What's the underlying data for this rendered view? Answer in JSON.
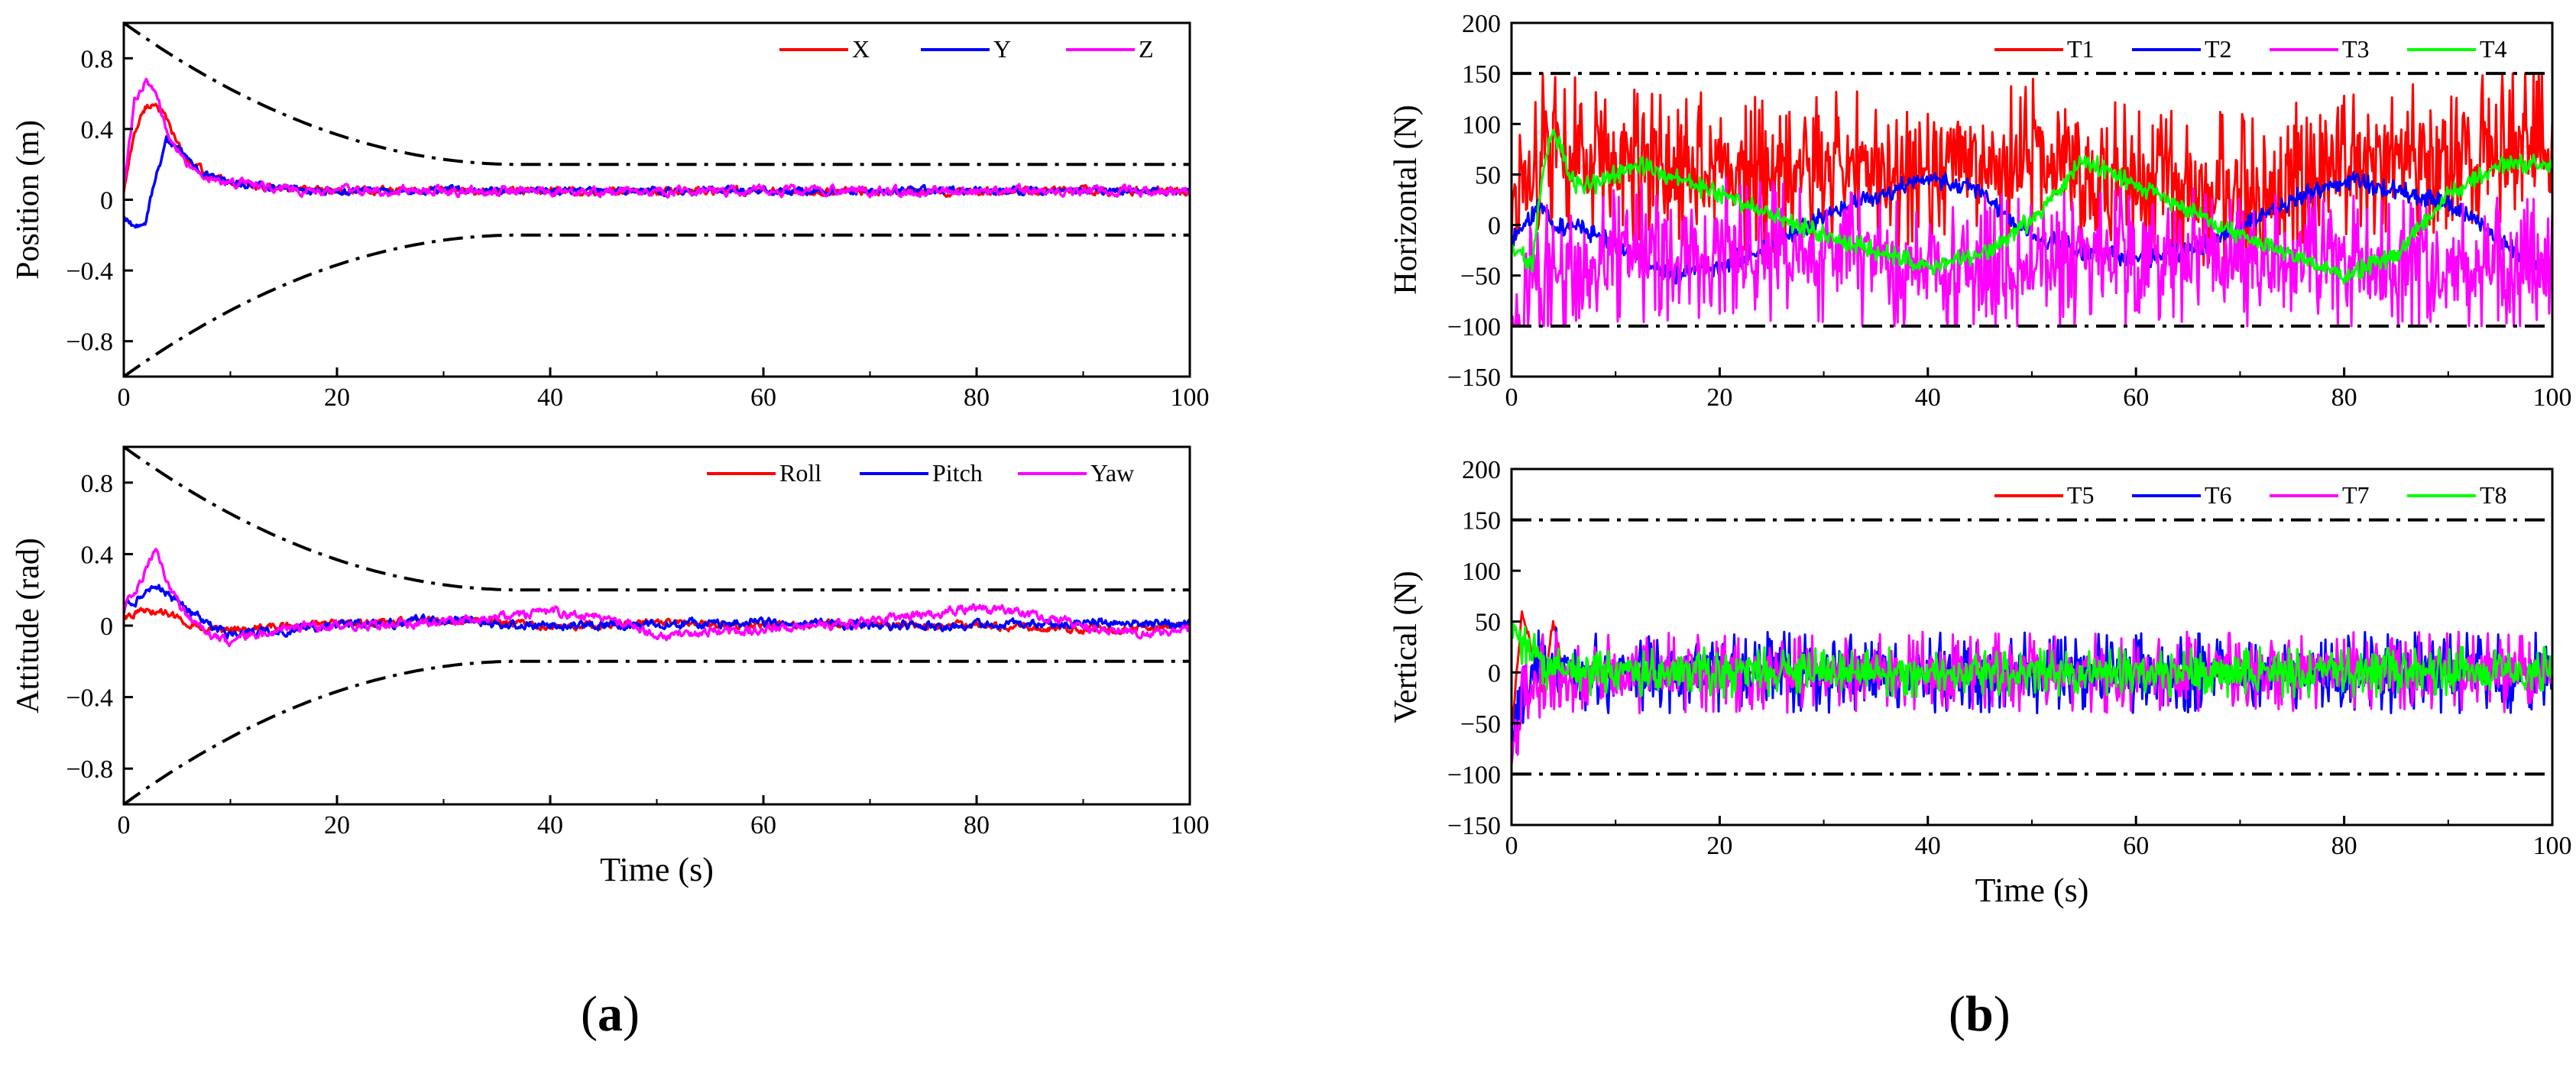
{
  "panels": [
    {
      "id": "a",
      "label": "a"
    },
    {
      "id": "b",
      "label": "b"
    }
  ],
  "chart_data": [
    {
      "id": "position",
      "type": "line",
      "title": "",
      "xlabel": "",
      "ylabel": "Position (m)",
      "xlim": [
        0,
        100
      ],
      "ylim": [
        -1.0,
        1.0
      ],
      "xticks": [
        0,
        20,
        40,
        60,
        80,
        100
      ],
      "xtick_labels": [
        "0",
        "20",
        "40",
        "60",
        "80",
        "100"
      ],
      "yticks": [
        -0.8,
        -0.4,
        0,
        0.4,
        0.8
      ],
      "ytick_labels": [
        "−0.8",
        "−0.4",
        "0",
        "0.4",
        "0.8"
      ],
      "legend_position": "top-right",
      "bounds": {
        "type": "prescribed",
        "upper_start": 1.0,
        "lower_start": -1.0,
        "settle_value": 0.2,
        "settle_time": 37,
        "style": "dash-dot",
        "color": "#000000"
      },
      "series": [
        {
          "name": "X",
          "color": "#ff0000",
          "x": [
            0,
            1,
            2,
            3,
            4,
            5,
            6,
            8,
            10,
            12,
            15,
            20,
            30,
            40,
            50,
            60,
            70,
            80,
            90,
            100
          ],
          "values": [
            0.05,
            0.38,
            0.52,
            0.55,
            0.45,
            0.32,
            0.22,
            0.14,
            0.1,
            0.08,
            0.06,
            0.05,
            0.05,
            0.05,
            0.05,
            0.05,
            0.05,
            0.05,
            0.05,
            0.05
          ],
          "noise": 0.02
        },
        {
          "name": "Y",
          "color": "#0000ff",
          "x": [
            0,
            1,
            2,
            3,
            4,
            5,
            6,
            8,
            10,
            12,
            15,
            20,
            30,
            40,
            50,
            60,
            70,
            80,
            90,
            100
          ],
          "values": [
            -0.1,
            -0.16,
            -0.12,
            0.12,
            0.33,
            0.3,
            0.22,
            0.14,
            0.1,
            0.08,
            0.06,
            0.05,
            0.05,
            0.05,
            0.05,
            0.05,
            0.05,
            0.05,
            0.05,
            0.05
          ],
          "noise": 0.02
        },
        {
          "name": "Z",
          "color": "#ff00ff",
          "x": [
            0,
            1,
            2,
            3,
            4,
            5,
            6,
            8,
            10,
            12,
            15,
            20,
            30,
            40,
            50,
            60,
            70,
            80,
            90,
            100
          ],
          "values": [
            0.1,
            0.55,
            0.68,
            0.6,
            0.4,
            0.28,
            0.2,
            0.13,
            0.1,
            0.08,
            0.06,
            0.05,
            0.05,
            0.05,
            0.05,
            0.05,
            0.05,
            0.05,
            0.05,
            0.05
          ],
          "noise": 0.025
        }
      ]
    },
    {
      "id": "attitude",
      "type": "line",
      "title": "",
      "xlabel": "Time (s)",
      "ylabel": "Attitude (rad)",
      "xlim": [
        0,
        100
      ],
      "ylim": [
        -1.0,
        1.0
      ],
      "xticks": [
        0,
        20,
        40,
        60,
        80,
        100
      ],
      "xtick_labels": [
        "0",
        "20",
        "40",
        "60",
        "80",
        "100"
      ],
      "yticks": [
        -0.8,
        -0.4,
        0,
        0.4,
        0.8
      ],
      "ytick_labels": [
        "−0.8",
        "−0.4",
        "0",
        "0.4",
        "0.8"
      ],
      "legend_position": "top-right",
      "bounds": {
        "type": "prescribed",
        "upper_start": 1.0,
        "lower_start": -1.0,
        "settle_value": 0.2,
        "settle_time": 37,
        "style": "dash-dot",
        "color": "#000000"
      },
      "series": [
        {
          "name": "Roll",
          "color": "#ff0000",
          "x": [
            0,
            2,
            4,
            6,
            8,
            10,
            15,
            20,
            30,
            40,
            50,
            60,
            70,
            80,
            90,
            100
          ],
          "values": [
            0.05,
            0.08,
            0.07,
            0.02,
            -0.02,
            -0.03,
            0.0,
            0.01,
            0.03,
            0.0,
            0.01,
            0.0,
            0.01,
            0.0,
            -0.02,
            0.0
          ],
          "noise": 0.02
        },
        {
          "name": "Pitch",
          "color": "#0000ff",
          "x": [
            0,
            2,
            3,
            4,
            6,
            8,
            10,
            15,
            20,
            30,
            40,
            50,
            60,
            70,
            80,
            90,
            100
          ],
          "values": [
            0.1,
            0.18,
            0.22,
            0.18,
            0.08,
            0.0,
            -0.05,
            -0.02,
            0.0,
            0.03,
            0.0,
            0.01,
            0.02,
            0.0,
            0.0,
            0.02,
            0.0
          ],
          "noise": 0.025
        },
        {
          "name": "Yaw",
          "color": "#ff00ff",
          "x": [
            0,
            2,
            3,
            4,
            6,
            8,
            10,
            12,
            15,
            20,
            30,
            40,
            45,
            50,
            60,
            70,
            80,
            85,
            90,
            95,
            100
          ],
          "values": [
            0.08,
            0.3,
            0.42,
            0.25,
            0.05,
            -0.05,
            -0.1,
            -0.05,
            -0.02,
            0.0,
            0.02,
            0.08,
            0.05,
            -0.05,
            -0.02,
            0.02,
            0.1,
            0.06,
            0.0,
            -0.05,
            -0.02
          ],
          "noise": 0.025
        }
      ]
    },
    {
      "id": "horizontal",
      "type": "line",
      "title": "",
      "xlabel": "",
      "ylabel": "Horizontal (N)",
      "xlim": [
        0,
        100
      ],
      "ylim": [
        -150,
        200
      ],
      "xticks": [
        0,
        20,
        40,
        60,
        80,
        100
      ],
      "xtick_labels": [
        "0",
        "20",
        "40",
        "60",
        "80",
        "100"
      ],
      "yticks": [
        -150,
        -100,
        -50,
        0,
        50,
        100,
        150,
        200
      ],
      "ytick_labels": [
        "−150",
        "−100",
        "−50",
        "0",
        "50",
        "100",
        "150",
        "200"
      ],
      "legend_position": "top-right",
      "bounds": {
        "type": "constant",
        "upper": 150,
        "lower": -100,
        "style": "dash-dot",
        "color": "#000000"
      },
      "series": [
        {
          "name": "T1",
          "color": "#ff0000",
          "x": [
            0,
            3,
            10,
            20,
            30,
            40,
            50,
            55,
            60,
            70,
            75,
            80,
            90,
            100
          ],
          "values": [
            -10,
            80,
            60,
            50,
            55,
            60,
            65,
            50,
            40,
            30,
            40,
            60,
            70,
            80
          ],
          "noise": 80,
          "clip": [
            -100,
            150
          ]
        },
        {
          "name": "T2",
          "color": "#0000ff",
          "x": [
            0,
            2,
            3,
            4,
            6,
            8,
            10,
            12,
            15,
            20,
            25,
            30,
            35,
            40,
            45,
            48,
            50,
            55,
            60,
            65,
            70,
            75,
            80,
            85,
            90,
            95,
            100
          ],
          "values": [
            -15,
            10,
            20,
            -5,
            0,
            -10,
            -20,
            -30,
            -50,
            -40,
            -20,
            10,
            30,
            45,
            35,
            5,
            -10,
            -25,
            -35,
            -25,
            -5,
            25,
            45,
            35,
            20,
            -15,
            -50
          ],
          "noise": 10
        },
        {
          "name": "T3",
          "color": "#ff00ff",
          "x": [
            0,
            3,
            10,
            20,
            30,
            40,
            50,
            60,
            70,
            80,
            90,
            100
          ],
          "values": [
            -100,
            -50,
            -30,
            -20,
            -30,
            -40,
            -35,
            -30,
            -35,
            -40,
            -45,
            -40
          ],
          "noise": 70,
          "clip": [
            -100,
            150
          ]
        },
        {
          "name": "T4",
          "color": "#00ff00",
          "x": [
            0,
            2,
            3,
            4,
            6,
            8,
            12,
            20,
            30,
            40,
            45,
            50,
            55,
            60,
            70,
            80,
            85,
            90,
            95,
            100
          ],
          "values": [
            -20,
            -40,
            50,
            95,
            40,
            40,
            60,
            30,
            -10,
            -40,
            -30,
            5,
            65,
            40,
            -10,
            -50,
            -30,
            30,
            60,
            60
          ],
          "noise": 10
        }
      ]
    },
    {
      "id": "vertical",
      "type": "line",
      "title": "",
      "xlabel": "Time (s)",
      "ylabel": "Vertical (N)",
      "xlim": [
        0,
        100
      ],
      "ylim": [
        -150,
        200
      ],
      "xticks": [
        0,
        20,
        40,
        60,
        80,
        100
      ],
      "xtick_labels": [
        "0",
        "20",
        "40",
        "60",
        "80",
        "100"
      ],
      "yticks": [
        -150,
        -100,
        -50,
        0,
        50,
        100,
        150,
        200
      ],
      "ytick_labels": [
        "−150",
        "−100",
        "−50",
        "0",
        "50",
        "100",
        "150",
        "200"
      ],
      "legend_position": "top-right",
      "bounds": {
        "type": "constant",
        "upper": 150,
        "lower": -100,
        "style": "dash-dot",
        "color": "#000000"
      },
      "series": [
        {
          "name": "T5",
          "color": "#ff0000",
          "x": [
            0,
            1,
            2,
            3,
            4,
            5,
            8,
            100
          ],
          "values": [
            -60,
            60,
            20,
            -20,
            50,
            0,
            0,
            0
          ],
          "noise": 5
        },
        {
          "name": "T6",
          "color": "#0000ff",
          "x": [
            0,
            1,
            3,
            5,
            100
          ],
          "values": [
            -60,
            -20,
            10,
            0,
            0
          ],
          "noise": 40
        },
        {
          "name": "T7",
          "color": "#ff00ff",
          "x": [
            0,
            1,
            3,
            5,
            100
          ],
          "values": [
            -80,
            -30,
            0,
            0,
            0
          ],
          "noise": 40
        },
        {
          "name": "T8",
          "color": "#00ff00",
          "x": [
            0,
            1,
            3,
            5,
            100
          ],
          "values": [
            40,
            30,
            10,
            0,
            0
          ],
          "noise": 25
        }
      ]
    }
  ]
}
